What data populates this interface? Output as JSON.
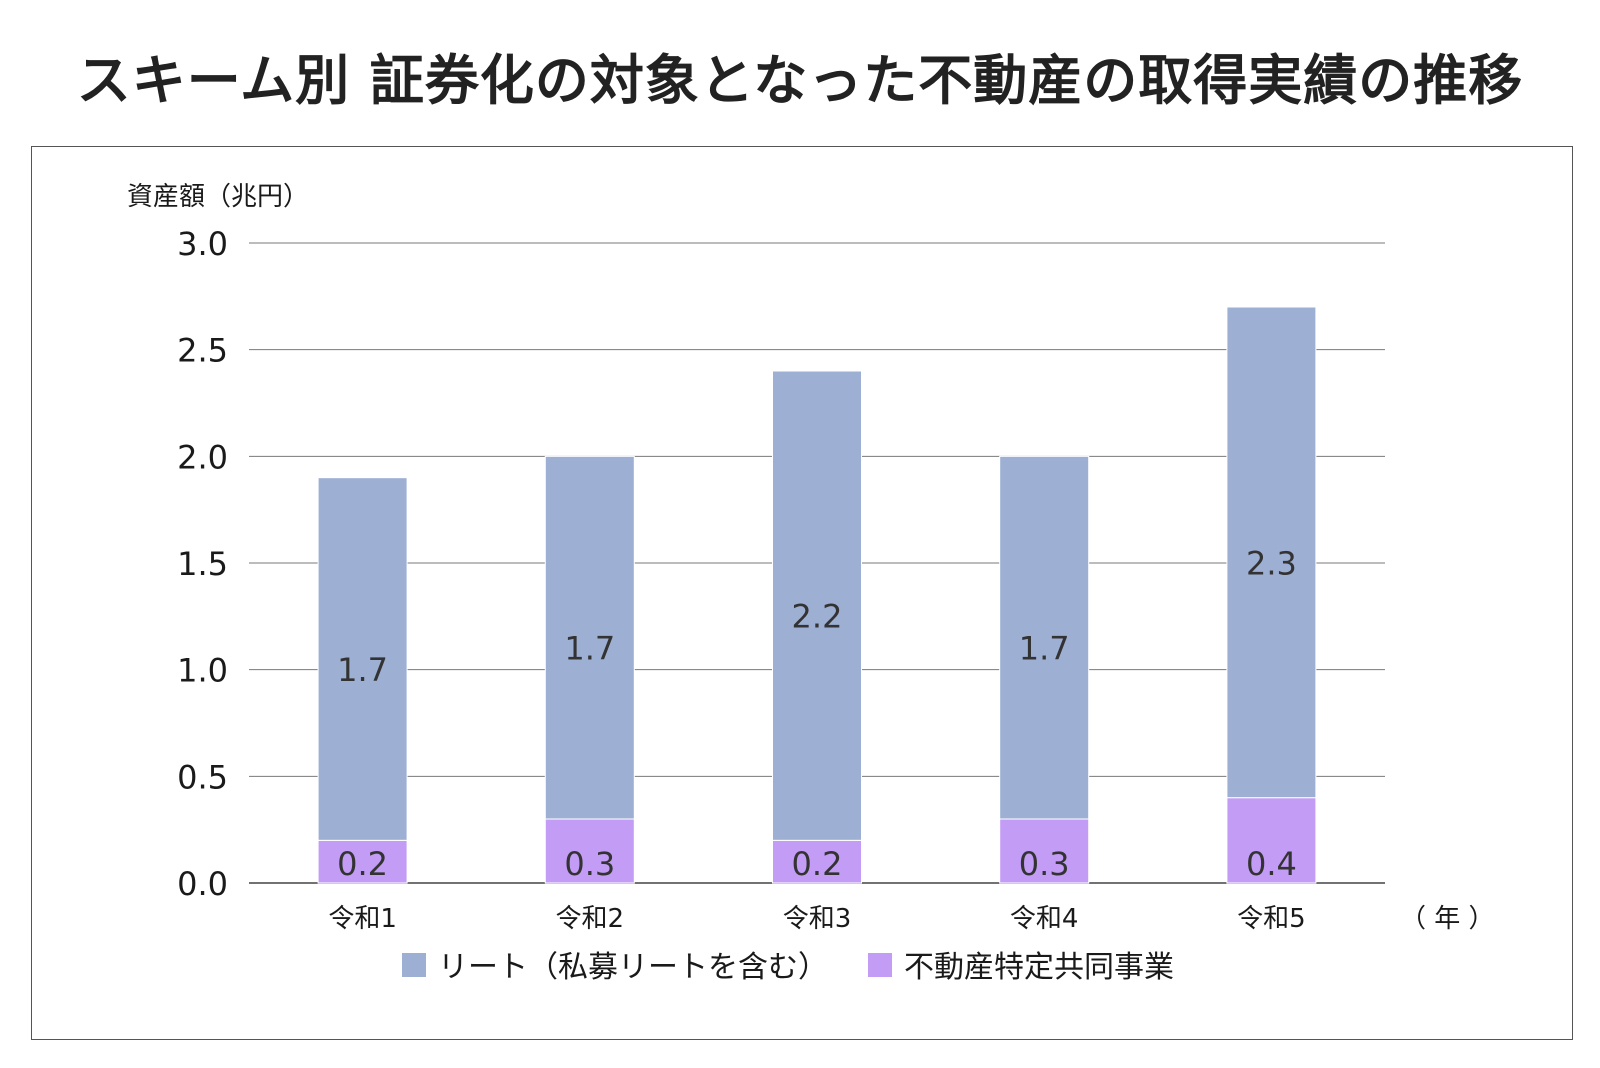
{
  "chart_data": {
    "type": "bar",
    "stacked": true,
    "title": "スキーム別 証券化の対象となった不動産の取得実績の推移",
    "ylabel": "資産額（兆円）",
    "xlabel": "（ 年 ）",
    "ylim": [
      0,
      3.0
    ],
    "yticks": [
      "0.0",
      "0.5",
      "1.0",
      "1.5",
      "2.0",
      "2.5",
      "3.0"
    ],
    "grid": true,
    "legend_position": "bottom",
    "categories": [
      "令和1",
      "令和2",
      "令和3",
      "令和4",
      "令和5"
    ],
    "series": [
      {
        "name": "不動産特定共同事業",
        "values": [
          0.2,
          0.3,
          0.2,
          0.3,
          0.4
        ],
        "labels": [
          "0.2",
          "0.3",
          "0.2",
          "0.3",
          "0.4"
        ],
        "color": "#c39cf5"
      },
      {
        "name": "リート（私募リートを含む）",
        "values": [
          1.7,
          1.7,
          2.2,
          1.7,
          2.3
        ],
        "labels": [
          "1.7",
          "1.7",
          "2.2",
          "1.7",
          "2.3"
        ],
        "color": "#9db0d4"
      }
    ]
  }
}
